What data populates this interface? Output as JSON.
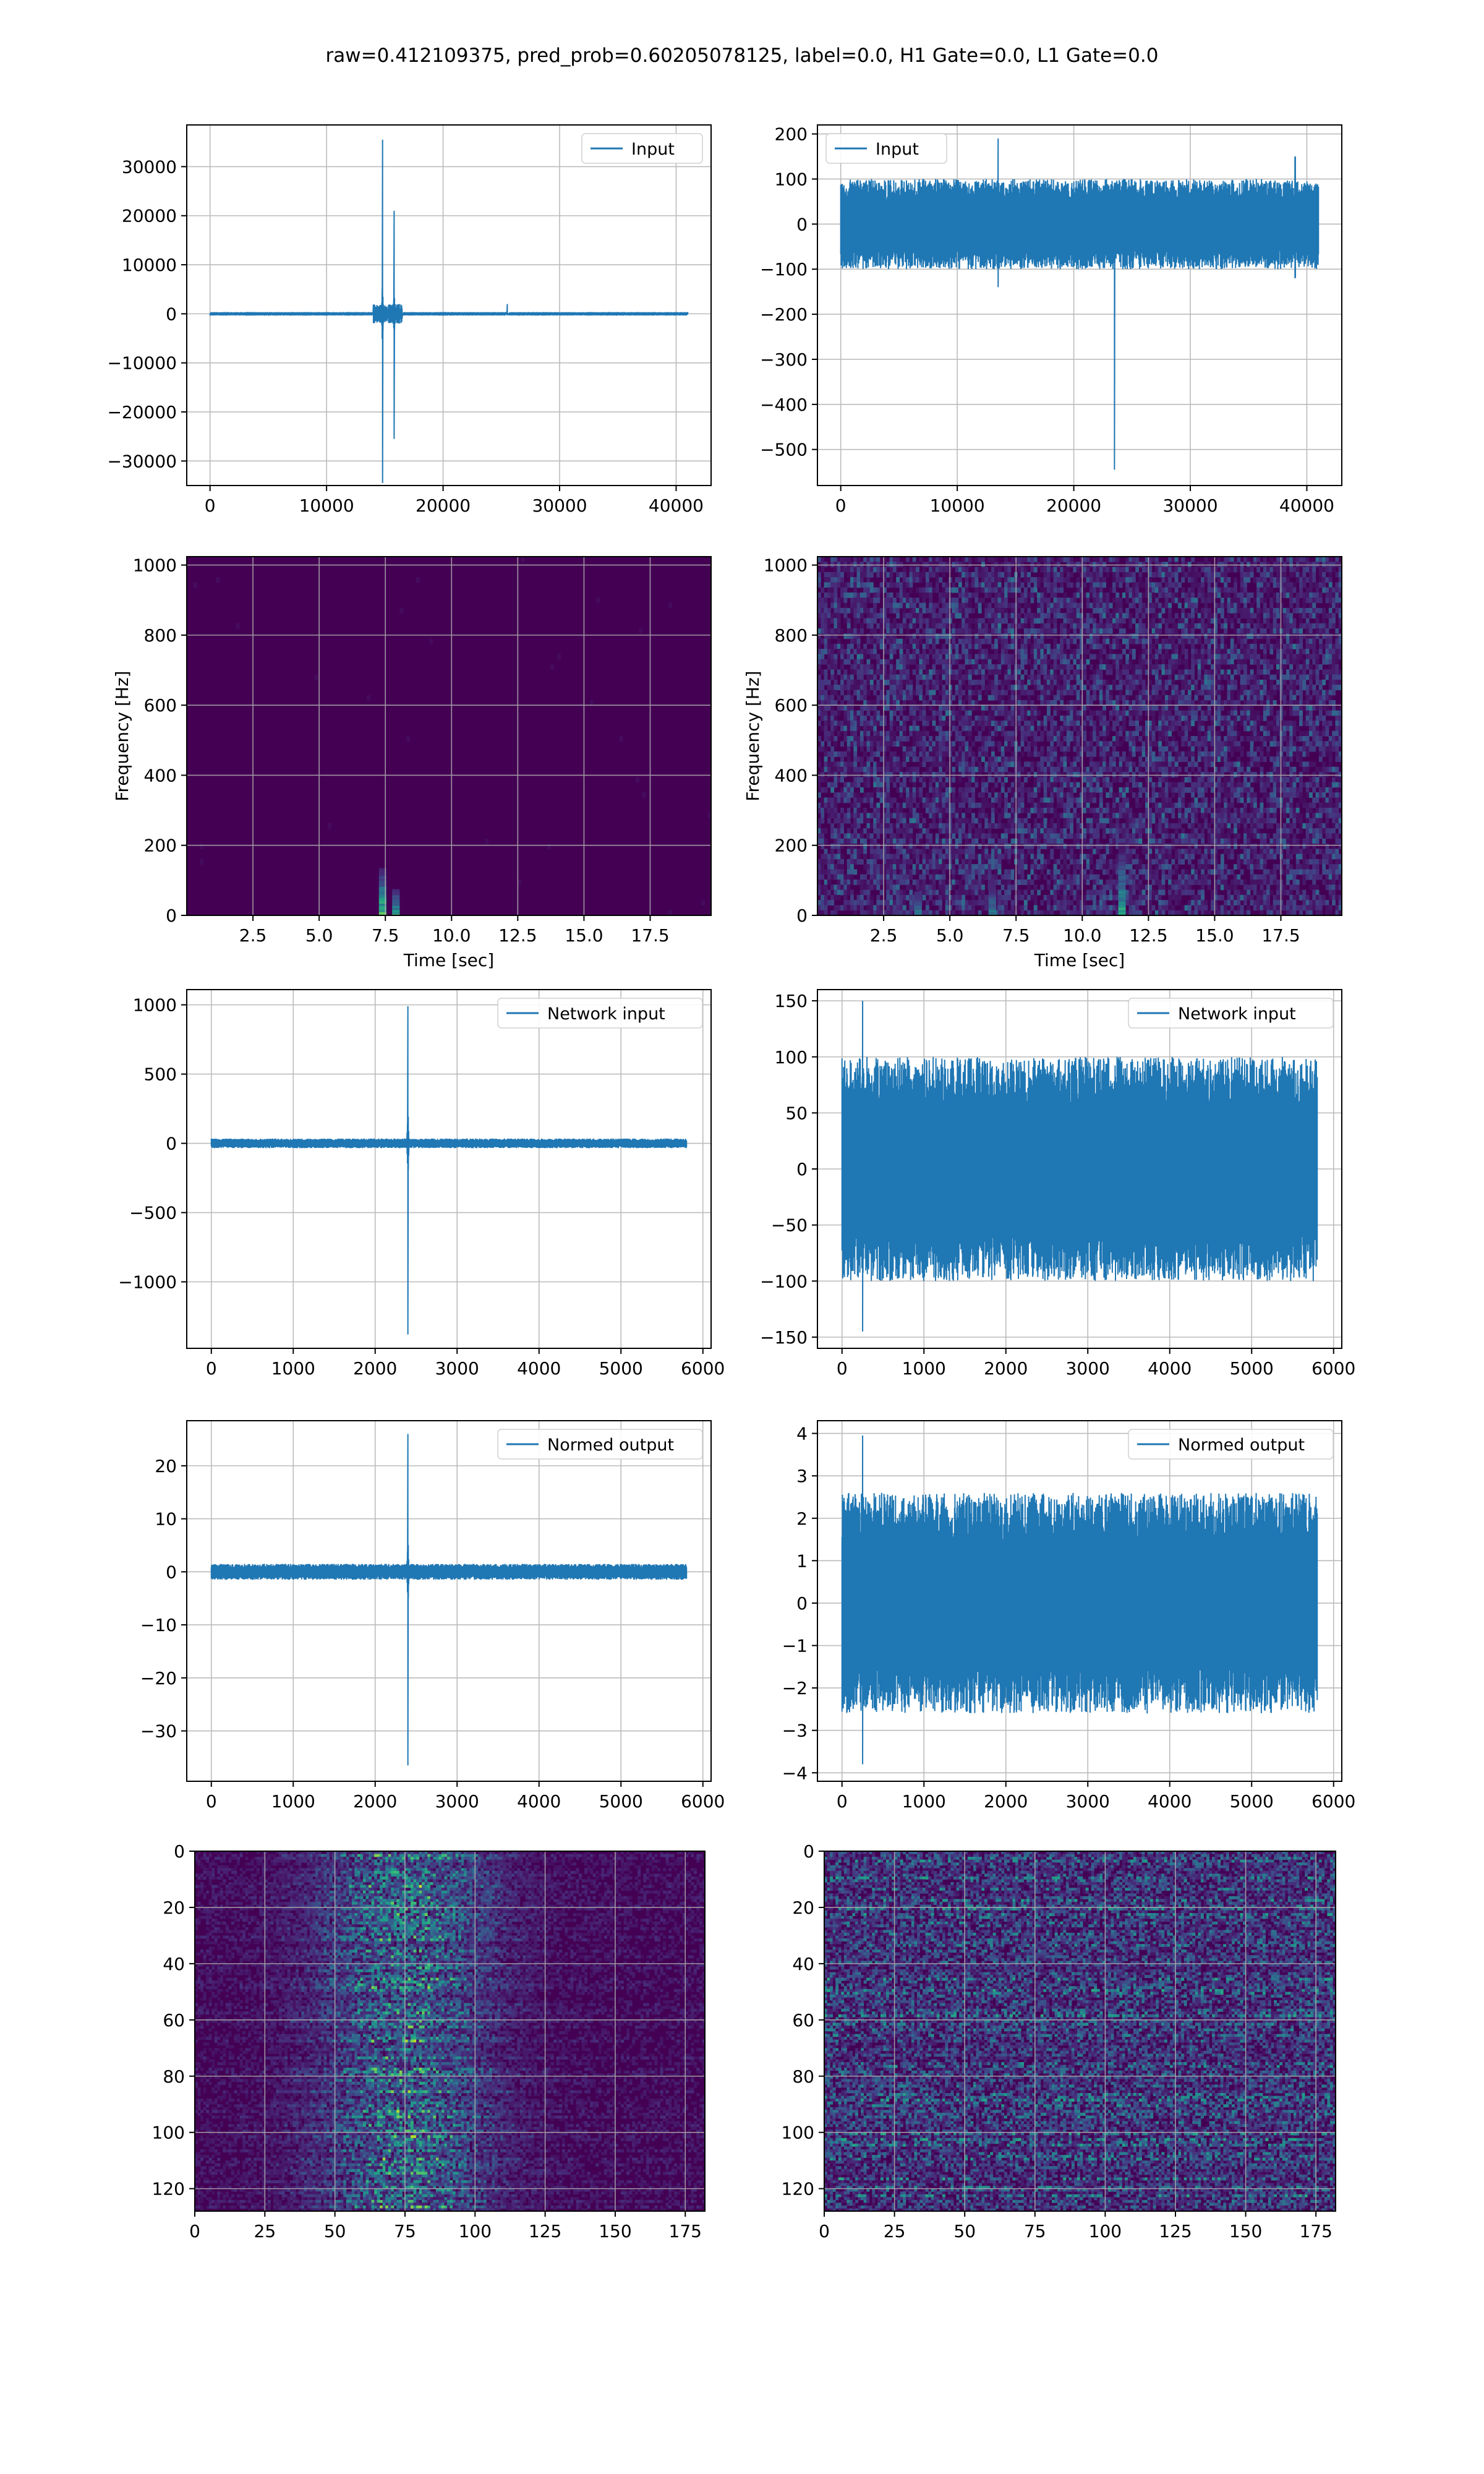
{
  "suptitle": "raw=0.412109375, pred_prob=0.60205078125, label=0.0, H1 Gate=0.0, L1 Gate=0.0",
  "colors": {
    "line": "#1f77b4",
    "grid": "#b0b0b0",
    "viridis_dark": "#440154"
  },
  "chart_data": [
    {
      "id": "row1-left",
      "type": "line",
      "legend": "Input",
      "legend_loc": "top-right",
      "xlim": [
        -2000,
        43000
      ],
      "ylim": [
        -35000,
        38500
      ],
      "xticks": [
        0,
        10000,
        20000,
        30000,
        40000
      ],
      "yticks": [
        -30000,
        -20000,
        -10000,
        0,
        10000,
        20000,
        30000
      ],
      "grid": true,
      "signal": {
        "n": 41000,
        "noise": 60,
        "spikes": [
          [
            14800,
            35500,
            -34500
          ],
          [
            15800,
            21000,
            -25500
          ],
          [
            25500,
            2000,
            0
          ]
        ],
        "burst": [
          14000,
          16500,
          2000
        ]
      }
    },
    {
      "id": "row1-right",
      "type": "line",
      "legend": "Input",
      "legend_loc": "top-left",
      "xlim": [
        -2000,
        43000
      ],
      "ylim": [
        -580,
        220
      ],
      "xticks": [
        0,
        10000,
        20000,
        30000,
        40000
      ],
      "yticks": [
        -500,
        -400,
        -300,
        -200,
        -100,
        0,
        100,
        200
      ],
      "grid": true,
      "signal": {
        "n": 41000,
        "noise": 100,
        "spikes": [
          [
            23500,
            0,
            -545
          ],
          [
            13500,
            190,
            -140
          ],
          [
            39000,
            150,
            -120
          ]
        ],
        "burst": null
      }
    },
    {
      "id": "row2-left",
      "type": "heatmap",
      "subtype": "spectrogram",
      "xlim": [
        0,
        19.8
      ],
      "ylim": [
        0,
        1024
      ],
      "xticks": [
        2.5,
        5.0,
        7.5,
        10.0,
        12.5,
        15.0,
        17.5
      ],
      "xticklabels": [
        "2.5",
        "5.0",
        "7.5",
        "10.0",
        "12.5",
        "15.0",
        "17.5"
      ],
      "yticks": [
        0,
        200,
        400,
        600,
        800,
        1000
      ],
      "xlabel": "Time [sec]",
      "ylabel": "Frequency [Hz]",
      "grid": true,
      "background_noise": 0.02,
      "events": [
        [
          7.4,
          130,
          0.95
        ],
        [
          7.9,
          70,
          0.8
        ]
      ]
    },
    {
      "id": "row2-right",
      "type": "heatmap",
      "subtype": "spectrogram",
      "xlim": [
        0,
        19.8
      ],
      "ylim": [
        0,
        1024
      ],
      "xticks": [
        2.5,
        5.0,
        7.5,
        10.0,
        12.5,
        15.0,
        17.5
      ],
      "xticklabels": [
        "2.5",
        "5.0",
        "7.5",
        "10.0",
        "12.5",
        "15.0",
        "17.5"
      ],
      "yticks": [
        0,
        200,
        400,
        600,
        800,
        1000
      ],
      "xlabel": "Time [sec]",
      "ylabel": "Frequency [Hz]",
      "grid": true,
      "background_noise": 0.25,
      "events": [
        [
          3.8,
          60,
          0.7
        ],
        [
          6.6,
          80,
          0.6
        ],
        [
          11.5,
          200,
          0.75
        ]
      ]
    },
    {
      "id": "row3-left",
      "type": "line",
      "legend": "Network input",
      "legend_loc": "top-right",
      "xlim": [
        -300,
        6100
      ],
      "ylim": [
        -1480,
        1110
      ],
      "xticks": [
        0,
        1000,
        2000,
        3000,
        4000,
        5000,
        6000
      ],
      "yticks": [
        -1000,
        -500,
        0,
        500,
        1000
      ],
      "grid": true,
      "signal": {
        "n": 5800,
        "noise": 35,
        "spikes": [
          [
            2400,
            990,
            -1380
          ]
        ],
        "burst": null
      }
    },
    {
      "id": "row3-right",
      "type": "line",
      "legend": "Network input",
      "legend_loc": "top-right",
      "xlim": [
        -300,
        6100
      ],
      "ylim": [
        -160,
        160
      ],
      "xticks": [
        0,
        1000,
        2000,
        3000,
        4000,
        5000,
        6000
      ],
      "yticks": [
        -150,
        -100,
        -50,
        0,
        50,
        100,
        150
      ],
      "grid": true,
      "signal": {
        "n": 5800,
        "noise": 100,
        "spikes": [
          [
            250,
            150,
            -145
          ]
        ],
        "burst": null
      }
    },
    {
      "id": "row4-left",
      "type": "line",
      "legend": "Normed output",
      "legend_loc": "top-right",
      "xlim": [
        -300,
        6100
      ],
      "ylim": [
        -39.5,
        28.5
      ],
      "xticks": [
        0,
        1000,
        2000,
        3000,
        4000,
        5000,
        6000
      ],
      "yticks": [
        -30,
        -20,
        -10,
        0,
        10,
        20
      ],
      "grid": true,
      "signal": {
        "n": 5800,
        "noise": 1.5,
        "spikes": [
          [
            2400,
            26,
            -36.5
          ]
        ],
        "burst": null
      }
    },
    {
      "id": "row4-right",
      "type": "line",
      "legend": "Normed output",
      "legend_loc": "top-right",
      "xlim": [
        -300,
        6100
      ],
      "ylim": [
        -4.2,
        4.3
      ],
      "xticks": [
        0,
        1000,
        2000,
        3000,
        4000,
        5000,
        6000
      ],
      "yticks": [
        -4,
        -3,
        -2,
        -1,
        0,
        1,
        2,
        3,
        4
      ],
      "grid": true,
      "signal": {
        "n": 5800,
        "noise": 2.6,
        "spikes": [
          [
            250,
            3.95,
            -3.8
          ]
        ],
        "burst": null
      }
    },
    {
      "id": "row5-left",
      "type": "heatmap",
      "subtype": "matrix",
      "xlim": [
        0,
        182
      ],
      "ylim": [
        128,
        0
      ],
      "xticks": [
        0,
        25,
        50,
        75,
        100,
        125,
        150,
        175
      ],
      "yticks": [
        0,
        20,
        40,
        60,
        80,
        100,
        120
      ],
      "grid": true,
      "rows": 128,
      "cols": 182,
      "band_center": 75,
      "band_width": 30,
      "band_intensity": 0.6,
      "background_noise": 0.1
    },
    {
      "id": "row5-right",
      "type": "heatmap",
      "subtype": "matrix",
      "xlim": [
        0,
        182
      ],
      "ylim": [
        128,
        0
      ],
      "xticks": [
        0,
        25,
        50,
        75,
        100,
        125,
        150,
        175
      ],
      "yticks": [
        0,
        20,
        40,
        60,
        80,
        100,
        120
      ],
      "grid": true,
      "rows": 128,
      "cols": 182,
      "band_center": null,
      "band_width": 0,
      "band_intensity": 0,
      "background_noise": 0.45
    }
  ]
}
